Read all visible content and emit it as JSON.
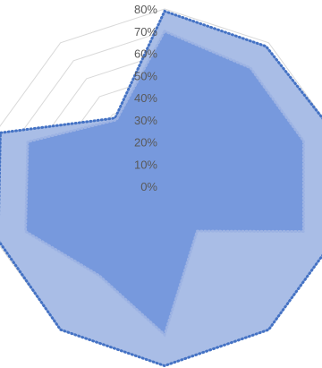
{
  "chart_data": {
    "type": "radar",
    "axis": {
      "min": 0,
      "max": 0.8,
      "step": 0.1,
      "tick_labels": [
        "0%",
        "10%",
        "20%",
        "30%",
        "40%",
        "50%",
        "60%",
        "70%",
        "80%"
      ]
    },
    "spokes": 10,
    "grid": true,
    "legend": "none",
    "series": [
      {
        "values": [
          0.79,
          0.78,
          0.8,
          0.8,
          0.8,
          0.81,
          0.8,
          0.79,
          0.78,
          0.38
        ],
        "color": "#4472c4",
        "fill": "#a9bde6",
        "line_style": "dotted"
      },
      {
        "values": [
          0.7,
          0.66,
          0.66,
          0.66,
          0.25,
          0.67,
          0.5,
          0.66,
          0.65,
          0.37
        ],
        "color": "#9db3e3",
        "fill": "#6f93db",
        "line_style": "dotted"
      }
    ]
  }
}
